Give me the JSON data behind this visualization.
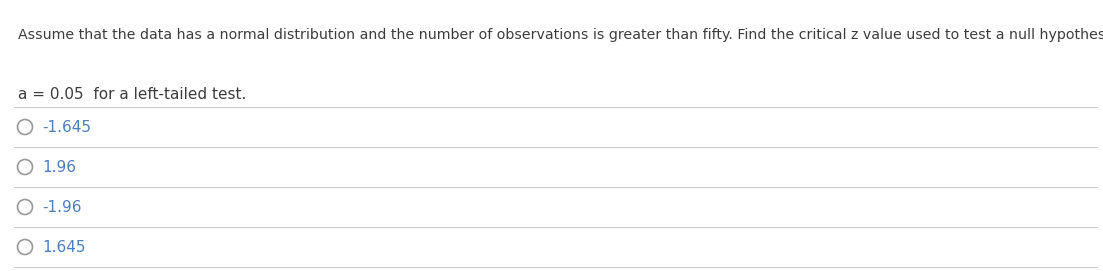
{
  "title_line": "Assume that the data has a normal distribution and the number of observations is greater than fifty. Find the critical z value used to test a null hypothesis.",
  "subtitle_line": "a = 0.05  for a left-tailed test.",
  "options": [
    "-1.645",
    "1.96",
    "-1.96",
    "1.645"
  ],
  "bg_color": "#ffffff",
  "title_color": "#3d3d3d",
  "subtitle_color": "#3d3d3d",
  "option_color": "#4a7fc1",
  "separator_color": "#cccccc",
  "circle_edge_color": "#999999",
  "title_fontsize": 10.2,
  "subtitle_fontsize": 11.0,
  "option_fontsize": 11.0,
  "fig_width": 11.03,
  "fig_height": 2.71,
  "dpi": 100
}
